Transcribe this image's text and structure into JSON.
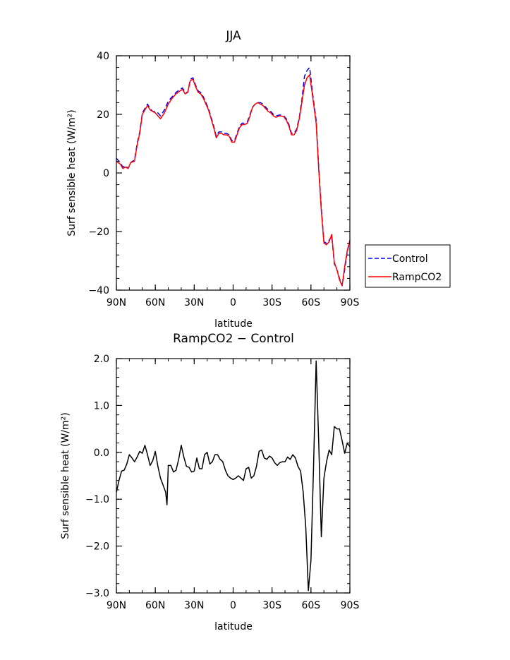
{
  "chart_data": [
    {
      "type": "line",
      "title": "JJA",
      "xlabel": "latitude",
      "ylabel": "Surf sensible heat (W/m²)",
      "xlim": [
        90,
        -90
      ],
      "ylim": [
        -40,
        40
      ],
      "x_ticks": [
        90,
        60,
        30,
        0,
        -30,
        -60,
        -90
      ],
      "x_tick_labels": [
        "90N",
        "60N",
        "30N",
        "0",
        "30S",
        "60S",
        "90S"
      ],
      "y_ticks": [
        40,
        20,
        0,
        -20,
        -40
      ],
      "y_tick_labels": [
        "40",
        "20",
        "0",
        "−20",
        "−40"
      ],
      "legend_position": "right",
      "series": [
        {
          "name": "Control",
          "color": "#0000ff",
          "dash": "dashed",
          "points": [
            [
              90,
              5
            ],
            [
              87,
              3.5
            ],
            [
              85,
              2
            ],
            [
              83,
              2.5
            ],
            [
              81,
              1.5
            ],
            [
              79,
              3.5
            ],
            [
              76,
              4.5
            ],
            [
              74,
              10
            ],
            [
              72,
              14
            ],
            [
              70,
              20.5
            ],
            [
              68,
              22
            ],
            [
              66,
              23.5
            ],
            [
              64,
              22
            ],
            [
              62,
              21
            ],
            [
              60,
              21
            ],
            [
              58,
              20.5
            ],
            [
              56,
              19.5
            ],
            [
              53,
              21.5
            ],
            [
              50,
              24.5
            ],
            [
              47,
              26
            ],
            [
              44,
              27.5
            ],
            [
              41,
              28.5
            ],
            [
              39,
              29
            ],
            [
              37,
              27.5
            ],
            [
              35,
              27.5
            ],
            [
              33,
              32
            ],
            [
              31,
              32.5
            ],
            [
              29,
              30
            ],
            [
              27,
              28
            ],
            [
              25,
              27.5
            ],
            [
              23,
              26
            ],
            [
              21,
              24
            ],
            [
              19,
              22
            ],
            [
              17,
              19
            ],
            [
              15,
              16
            ],
            [
              13,
              12.5
            ],
            [
              11,
              14
            ],
            [
              9,
              14
            ],
            [
              7,
              13.5
            ],
            [
              5,
              13.5
            ],
            [
              3,
              13
            ],
            [
              1,
              11
            ],
            [
              -1,
              11
            ],
            [
              -3,
              13.5
            ],
            [
              -5,
              16
            ],
            [
              -7,
              17
            ],
            [
              -9,
              17
            ],
            [
              -11,
              17.5
            ],
            [
              -13,
              20
            ],
            [
              -15,
              22.5
            ],
            [
              -17,
              23.5
            ],
            [
              -19,
              24
            ],
            [
              -21,
              24
            ],
            [
              -23,
              23.5
            ],
            [
              -25,
              22.5
            ],
            [
              -27,
              21.5
            ],
            [
              -29,
              21
            ],
            [
              -31,
              20
            ],
            [
              -33,
              19.5
            ],
            [
              -36,
              19.8
            ],
            [
              -39,
              19.5
            ],
            [
              -41,
              18.5
            ],
            [
              -43,
              16.5
            ],
            [
              -45,
              13.5
            ],
            [
              -47,
              13.5
            ],
            [
              -49,
              15
            ],
            [
              -51,
              19
            ],
            [
              -53,
              25
            ],
            [
              -55,
              33
            ],
            [
              -57,
              35
            ],
            [
              -59,
              36
            ],
            [
              -61,
              28
            ],
            [
              -64,
              18
            ],
            [
              -66,
              2
            ],
            [
              -68,
              -12
            ],
            [
              -70,
              -23.5
            ],
            [
              -72,
              -24
            ],
            [
              -74,
              -23
            ],
            [
              -76,
              -21.5
            ],
            [
              -78,
              -31
            ],
            [
              -80,
              -33
            ],
            [
              -82,
              -36
            ],
            [
              -84,
              -38.5
            ],
            [
              -86,
              -33
            ],
            [
              -88,
              -27
            ],
            [
              -90,
              -23
            ]
          ]
        },
        {
          "name": "RampCO2",
          "color": "#ff0000",
          "dash": "solid",
          "points": [
            [
              90,
              4
            ],
            [
              87,
              3
            ],
            [
              85,
              1.5
            ],
            [
              83,
              2
            ],
            [
              81,
              1.5
            ],
            [
              79,
              3.5
            ],
            [
              76,
              4
            ],
            [
              74,
              9.5
            ],
            [
              72,
              13.5
            ],
            [
              70,
              20
            ],
            [
              68,
              21.5
            ],
            [
              66,
              23
            ],
            [
              64,
              21.5
            ],
            [
              62,
              21
            ],
            [
              60,
              20.5
            ],
            [
              58,
              19.5
            ],
            [
              56,
              18.5
            ],
            [
              53,
              20.5
            ],
            [
              50,
              23.5
            ],
            [
              47,
              25.5
            ],
            [
              44,
              27
            ],
            [
              41,
              28
            ],
            [
              39,
              28.5
            ],
            [
              37,
              27
            ],
            [
              35,
              27.5
            ],
            [
              33,
              31.5
            ],
            [
              31,
              32
            ],
            [
              29,
              29.5
            ],
            [
              27,
              27.5
            ],
            [
              25,
              27
            ],
            [
              23,
              25.5
            ],
            [
              21,
              23.5
            ],
            [
              19,
              21.5
            ],
            [
              17,
              18.5
            ],
            [
              15,
              15.5
            ],
            [
              13,
              12
            ],
            [
              11,
              13.5
            ],
            [
              9,
              13.5
            ],
            [
              7,
              13
            ],
            [
              5,
              13
            ],
            [
              3,
              12.5
            ],
            [
              1,
              10.5
            ],
            [
              -1,
              10.5
            ],
            [
              -3,
              13
            ],
            [
              -5,
              15.5
            ],
            [
              -7,
              16.5
            ],
            [
              -9,
              16.5
            ],
            [
              -11,
              17
            ],
            [
              -13,
              19.5
            ],
            [
              -15,
              22.5
            ],
            [
              -17,
              23.5
            ],
            [
              -19,
              24
            ],
            [
              -21,
              23.5
            ],
            [
              -23,
              23
            ],
            [
              -25,
              22
            ],
            [
              -27,
              21
            ],
            [
              -29,
              20.5
            ],
            [
              -31,
              19.5
            ],
            [
              -33,
              19
            ],
            [
              -36,
              19.5
            ],
            [
              -39,
              19.2
            ],
            [
              -41,
              18
            ],
            [
              -43,
              16
            ],
            [
              -45,
              13
            ],
            [
              -47,
              13
            ],
            [
              -49,
              14.5
            ],
            [
              -51,
              18.5
            ],
            [
              -53,
              24
            ],
            [
              -55,
              30
            ],
            [
              -57,
              32.5
            ],
            [
              -59,
              33.5
            ],
            [
              -61,
              27
            ],
            [
              -64,
              17
            ],
            [
              -66,
              1
            ],
            [
              -68,
              -13
            ],
            [
              -70,
              -24
            ],
            [
              -72,
              -24.5
            ],
            [
              -74,
              -23.5
            ],
            [
              -76,
              -21
            ],
            [
              -78,
              -30.5
            ],
            [
              -80,
              -33
            ],
            [
              -82,
              -36.5
            ],
            [
              -84,
              -38.5
            ],
            [
              -86,
              -32
            ],
            [
              -88,
              -26.5
            ],
            [
              -90,
              -23
            ]
          ]
        }
      ]
    },
    {
      "type": "line",
      "title": "RampCO2 − Control",
      "xlabel": "latitude",
      "ylabel": "Surf sensible heat (W/m²)",
      "xlim": [
        90,
        -90
      ],
      "ylim": [
        -3.0,
        2.0
      ],
      "x_ticks": [
        90,
        60,
        30,
        0,
        -30,
        -60,
        -90
      ],
      "x_tick_labels": [
        "90N",
        "60N",
        "30N",
        "0",
        "30S",
        "60S",
        "90S"
      ],
      "y_ticks": [
        2.0,
        1.0,
        0.0,
        -1.0,
        -2.0,
        -3.0
      ],
      "y_tick_labels": [
        "2.0",
        "1.0",
        "0.0",
        "−1.0",
        "−2.0",
        "−3.0"
      ],
      "series": [
        {
          "color": "#000000",
          "dash": "solid",
          "points": [
            [
              90,
              -0.85
            ],
            [
              88,
              -0.6
            ],
            [
              86,
              -0.4
            ],
            [
              84,
              -0.38
            ],
            [
              82,
              -0.25
            ],
            [
              80,
              -0.05
            ],
            [
              78,
              -0.12
            ],
            [
              76,
              -0.2
            ],
            [
              74,
              -0.1
            ],
            [
              72,
              0.02
            ],
            [
              70,
              -0.02
            ],
            [
              68,
              0.15
            ],
            [
              66,
              -0.05
            ],
            [
              64,
              -0.28
            ],
            [
              62,
              -0.18
            ],
            [
              60,
              0.02
            ],
            [
              58,
              -0.3
            ],
            [
              56,
              -0.55
            ],
            [
              54,
              -0.7
            ],
            [
              52,
              -0.85
            ],
            [
              51,
              -1.12
            ],
            [
              50,
              -0.28
            ],
            [
              48,
              -0.28
            ],
            [
              46,
              -0.42
            ],
            [
              44,
              -0.38
            ],
            [
              42,
              -0.15
            ],
            [
              40,
              0.15
            ],
            [
              38,
              -0.1
            ],
            [
              36,
              -0.3
            ],
            [
              34,
              -0.32
            ],
            [
              32,
              -0.42
            ],
            [
              30,
              -0.4
            ],
            [
              28,
              -0.12
            ],
            [
              26,
              -0.35
            ],
            [
              24,
              -0.35
            ],
            [
              22,
              -0.05
            ],
            [
              20,
              0.0
            ],
            [
              18,
              -0.25
            ],
            [
              16,
              -0.2
            ],
            [
              14,
              -0.05
            ],
            [
              12,
              -0.05
            ],
            [
              10,
              -0.15
            ],
            [
              8,
              -0.2
            ],
            [
              6,
              -0.38
            ],
            [
              4,
              -0.5
            ],
            [
              2,
              -0.55
            ],
            [
              0,
              -0.58
            ],
            [
              -2,
              -0.55
            ],
            [
              -4,
              -0.5
            ],
            [
              -6,
              -0.55
            ],
            [
              -8,
              -0.6
            ],
            [
              -10,
              -0.35
            ],
            [
              -12,
              -0.32
            ],
            [
              -14,
              -0.55
            ],
            [
              -16,
              -0.5
            ],
            [
              -18,
              -0.3
            ],
            [
              -20,
              0.02
            ],
            [
              -22,
              0.05
            ],
            [
              -24,
              -0.12
            ],
            [
              -26,
              -0.15
            ],
            [
              -28,
              -0.08
            ],
            [
              -30,
              -0.12
            ],
            [
              -32,
              -0.22
            ],
            [
              -34,
              -0.28
            ],
            [
              -36,
              -0.22
            ],
            [
              -38,
              -0.2
            ],
            [
              -40,
              -0.2
            ],
            [
              -42,
              -0.1
            ],
            [
              -44,
              -0.15
            ],
            [
              -46,
              -0.05
            ],
            [
              -48,
              -0.12
            ],
            [
              -50,
              -0.3
            ],
            [
              -52,
              -0.4
            ],
            [
              -54,
              -0.85
            ],
            [
              -56,
              -1.6
            ],
            [
              -58,
              -2.95
            ],
            [
              -60,
              -2.3
            ],
            [
              -62,
              -0.3
            ],
            [
              -64,
              1.95
            ],
            [
              -66,
              0.2
            ],
            [
              -68,
              -1.8
            ],
            [
              -70,
              -0.55
            ],
            [
              -72,
              -0.2
            ],
            [
              -74,
              0.05
            ],
            [
              -76,
              -0.05
            ],
            [
              -78,
              0.55
            ],
            [
              -80,
              0.5
            ],
            [
              -82,
              0.5
            ],
            [
              -84,
              0.25
            ],
            [
              -86,
              -0.02
            ],
            [
              -88,
              0.2
            ],
            [
              -90,
              0.12
            ]
          ]
        }
      ]
    }
  ]
}
